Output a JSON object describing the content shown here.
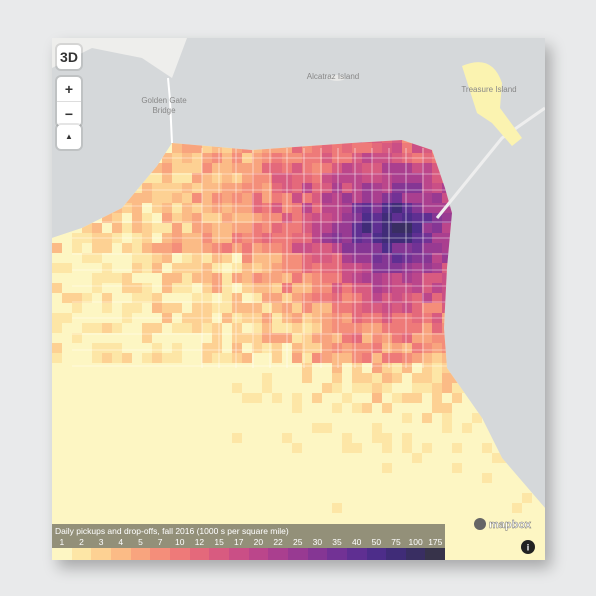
{
  "controls": {
    "toggle_3d": "3D",
    "zoom_in": "+",
    "zoom_out": "−",
    "compass": "▲"
  },
  "map": {
    "labels": {
      "alcatraz": "Alcatraz Island",
      "golden_gate": [
        "Golden Gate",
        "Bridge"
      ],
      "treasure_island": "Treasure Island"
    }
  },
  "legend": {
    "title": "Daily pickups and drop-offs, fall 2016 (1000 s per square mile)",
    "items": [
      {
        "label": 1,
        "color": "#fdf6c3"
      },
      {
        "label": 2,
        "color": "#fde6a6"
      },
      {
        "label": 3,
        "color": "#fdd193"
      },
      {
        "label": 4,
        "color": "#fbbb86"
      },
      {
        "label": 5,
        "color": "#f8a47e"
      },
      {
        "label": 7,
        "color": "#f48e7a"
      },
      {
        "label": 10,
        "color": "#ee7a79"
      },
      {
        "label": 12,
        "color": "#e4697b"
      },
      {
        "label": 15,
        "color": "#d85b80"
      },
      {
        "label": 17,
        "color": "#ca4f86"
      },
      {
        "label": 20,
        "color": "#bb468b"
      },
      {
        "label": 22,
        "color": "#aa3f8f"
      },
      {
        "label": 25,
        "color": "#983a92"
      },
      {
        "label": 30,
        "color": "#853694"
      },
      {
        "label": 35,
        "color": "#723295"
      },
      {
        "label": 40,
        "color": "#5f2f92"
      },
      {
        "label": 50,
        "color": "#4d2d8a"
      },
      {
        "label": 75,
        "color": "#402c78"
      },
      {
        "label": 100,
        "color": "#392e62"
      },
      {
        "label": 175,
        "color": "#37334a"
      }
    ]
  },
  "attribution": {
    "logo": "mapbox",
    "info": "i"
  }
}
